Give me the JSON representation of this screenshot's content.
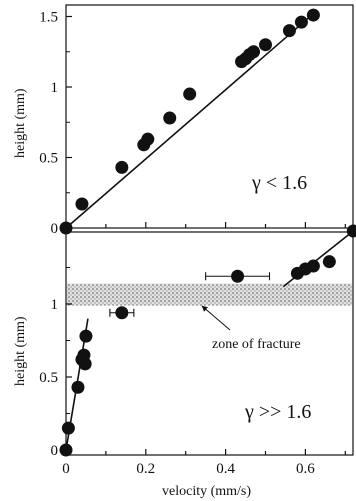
{
  "chart_data": [
    {
      "type": "scatter",
      "panel": "top",
      "annotation": "γ < 1.6",
      "xlabel": "",
      "ylabel": "height (mm)",
      "xlim": [
        0,
        0.72
      ],
      "ylim": [
        0,
        1.5
      ],
      "yticks": [
        "0",
        "0.5",
        "1",
        "1.5"
      ],
      "series": [
        {
          "points": [
            [
              0.0,
              0.0
            ],
            [
              0.04,
              0.17
            ],
            [
              0.14,
              0.43
            ],
            [
              0.195,
              0.59
            ],
            [
              0.205,
              0.63
            ],
            [
              0.26,
              0.78
            ],
            [
              0.31,
              0.95
            ],
            [
              0.44,
              1.18
            ],
            [
              0.45,
              1.2
            ],
            [
              0.46,
              1.23
            ],
            [
              0.47,
              1.25
            ],
            [
              0.5,
              1.3
            ],
            [
              0.56,
              1.4
            ],
            [
              0.59,
              1.46
            ],
            [
              0.62,
              1.51
            ]
          ],
          "fit_line": [
            [
              0.0,
              0.0
            ],
            [
              0.62,
              1.52
            ]
          ]
        }
      ]
    },
    {
      "type": "scatter",
      "panel": "bottom",
      "annotation": "γ >> 1.6",
      "xlabel": "velocity (mm/s)",
      "ylabel": "height (mm)",
      "xlim": [
        0,
        0.72
      ],
      "ylim": [
        0,
        1.5
      ],
      "xticks": [
        "0",
        "0.2",
        "0.4",
        "0.6"
      ],
      "yticks": [
        "0",
        "0.5",
        "1"
      ],
      "series": [
        {
          "points": [
            [
              0.0,
              0.0
            ],
            [
              0.006,
              0.15
            ],
            [
              0.03,
              0.43
            ],
            [
              0.04,
              0.62
            ],
            [
              0.045,
              0.65
            ],
            [
              0.048,
              0.59
            ],
            [
              0.05,
              0.78
            ],
            [
              0.14,
              0.94
            ],
            [
              0.43,
              1.19
            ],
            [
              0.58,
              1.21
            ],
            [
              0.6,
              1.24
            ],
            [
              0.62,
              1.26
            ],
            [
              0.66,
              1.29
            ],
            [
              0.72,
              1.5
            ]
          ],
          "x_error_bars": [
            {
              "x": 0.14,
              "y": 0.94,
              "xerr": 0.03
            },
            {
              "x": 0.43,
              "y": 1.19,
              "xerr": 0.08
            }
          ],
          "fit_lines": [
            [
              [
                0.0,
                0.0
              ],
              [
                0.055,
                0.9
              ]
            ],
            [
              [
                0.545,
                1.12
              ],
              [
                0.72,
                1.5
              ]
            ]
          ]
        }
      ],
      "shaded_band": {
        "label": "zone of fracture",
        "y_range": [
          0.99,
          1.14
        ]
      }
    }
  ]
}
